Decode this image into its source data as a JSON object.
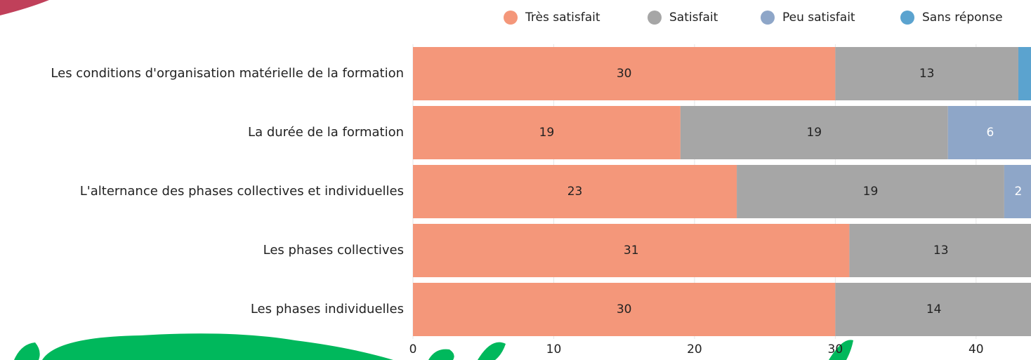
{
  "chart_data": {
    "type": "stacked-bar-horizontal",
    "categories": [
      "Les conditions d'organisation matérielle de la formation",
      "La durée de la formation",
      "L'alternance des phases collectives et individuelles",
      "Les phases collectives",
      "Les phases individuelles"
    ],
    "series": [
      {
        "name": "Très satisfait",
        "color": "#f4977a",
        "values": [
          30,
          19,
          23,
          31,
          30
        ]
      },
      {
        "name": "Satisfait",
        "color": "#a6a6a6",
        "values": [
          13,
          19,
          19,
          13,
          14
        ]
      },
      {
        "name": "Peu satisfait",
        "color": "#8ea6c8",
        "values": [
          null,
          6,
          2,
          null,
          null
        ]
      },
      {
        "name": "Sans réponse",
        "color": "#5ba3cf",
        "values": [
          1,
          null,
          null,
          null,
          null
        ]
      }
    ],
    "xlim": [
      0,
      44
    ],
    "xticks": [
      0,
      10,
      20,
      30,
      40
    ],
    "grid": true
  }
}
